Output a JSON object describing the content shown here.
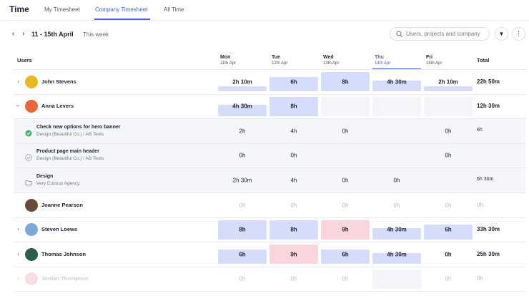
{
  "header": {
    "title": "Time",
    "tabs": [
      "My Timesheet",
      "Company Timesheet",
      "All Time"
    ]
  },
  "toolbar": {
    "date_range": "11 - 15th April",
    "period": "This week",
    "search_placeholder": "Users, projects and company"
  },
  "table": {
    "users_header": "Users",
    "total_header": "Total",
    "columns": [
      {
        "day": "Mon",
        "date": "11th Apr"
      },
      {
        "day": "Tue",
        "date": "12th Apr"
      },
      {
        "day": "Wed",
        "date": "13th Apr"
      },
      {
        "day": "Thu",
        "date": "14th Apr"
      },
      {
        "day": "Fri",
        "date": "15th Apr"
      }
    ],
    "rows": [
      {
        "name": "John Stevens",
        "cells": [
          "2h 10m",
          "6h",
          "8h",
          "4h 30m",
          "2h 10m"
        ],
        "total": "22h 50m"
      },
      {
        "name": "Anna Levers",
        "cells": [
          "4h 30m",
          "8h",
          null,
          null,
          null
        ],
        "total": "12h 30m"
      },
      {
        "name": "Check new options for hero banner",
        "subtitle": "Design (Beautiful Co.)  /  AB Tests",
        "cells": [
          "2h",
          "4h",
          "0h",
          null,
          "0h"
        ],
        "total": "6h"
      },
      {
        "name": "Product page main header",
        "subtitle": "Design (Beautiful Co.)  /  AB Tests",
        "cells": [
          "0h",
          "0h",
          null,
          null,
          "0h"
        ],
        "total": null
      },
      {
        "name": "Design",
        "subtitle": "Very Curious Agency",
        "cells": [
          "2h 30m",
          "4h",
          "0h",
          "0h",
          null
        ],
        "total": "6h 30m"
      },
      {
        "name": "Joanne Pearson",
        "cells": [
          "0h",
          "0h",
          "0h",
          "0h",
          "0h"
        ],
        "total": "0h"
      },
      {
        "name": "Steven Loews",
        "cells": [
          "8h",
          "8h",
          "9h",
          "4h 30m",
          "6h"
        ],
        "total": "33h 30m"
      },
      {
        "name": "Thomas Johnson",
        "cells": [
          "6h",
          "9h",
          "6h",
          "4h 30m",
          "0h"
        ],
        "total": "25h 30m"
      },
      {
        "name": "Jordan Thompson",
        "cells": [
          "0h",
          "0h",
          "0h",
          null,
          "0h"
        ],
        "total": "0h"
      }
    ]
  }
}
